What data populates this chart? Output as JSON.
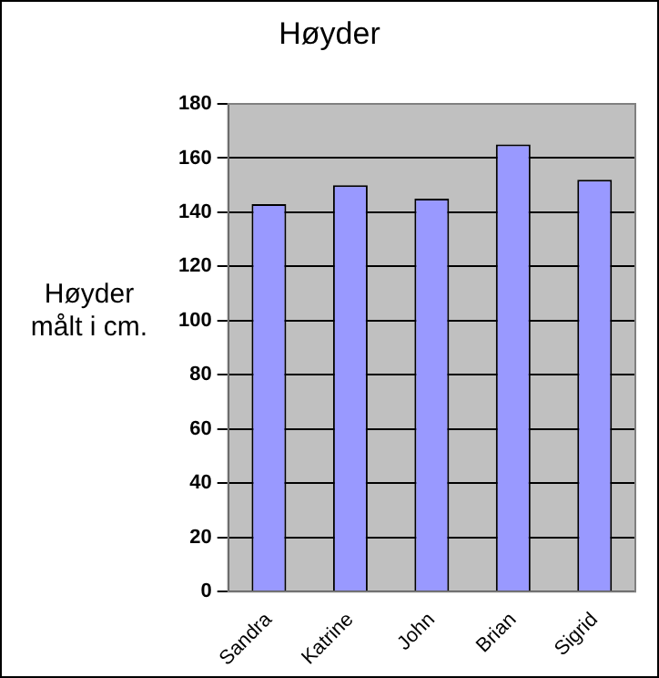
{
  "chart_data": {
    "type": "bar",
    "title": "Høyder",
    "ylabel": "Høyder målt i cm.",
    "categories": [
      "Sandra",
      "Katrine",
      "John",
      "Brian",
      "Sigrid"
    ],
    "values": [
      143,
      150,
      145,
      165,
      152
    ],
    "color": "#9999ff",
    "ylim": [
      0,
      180
    ],
    "yticks": [
      0,
      20,
      40,
      60,
      80,
      100,
      120,
      140,
      160,
      180
    ],
    "grid": "y",
    "legend": false
  }
}
